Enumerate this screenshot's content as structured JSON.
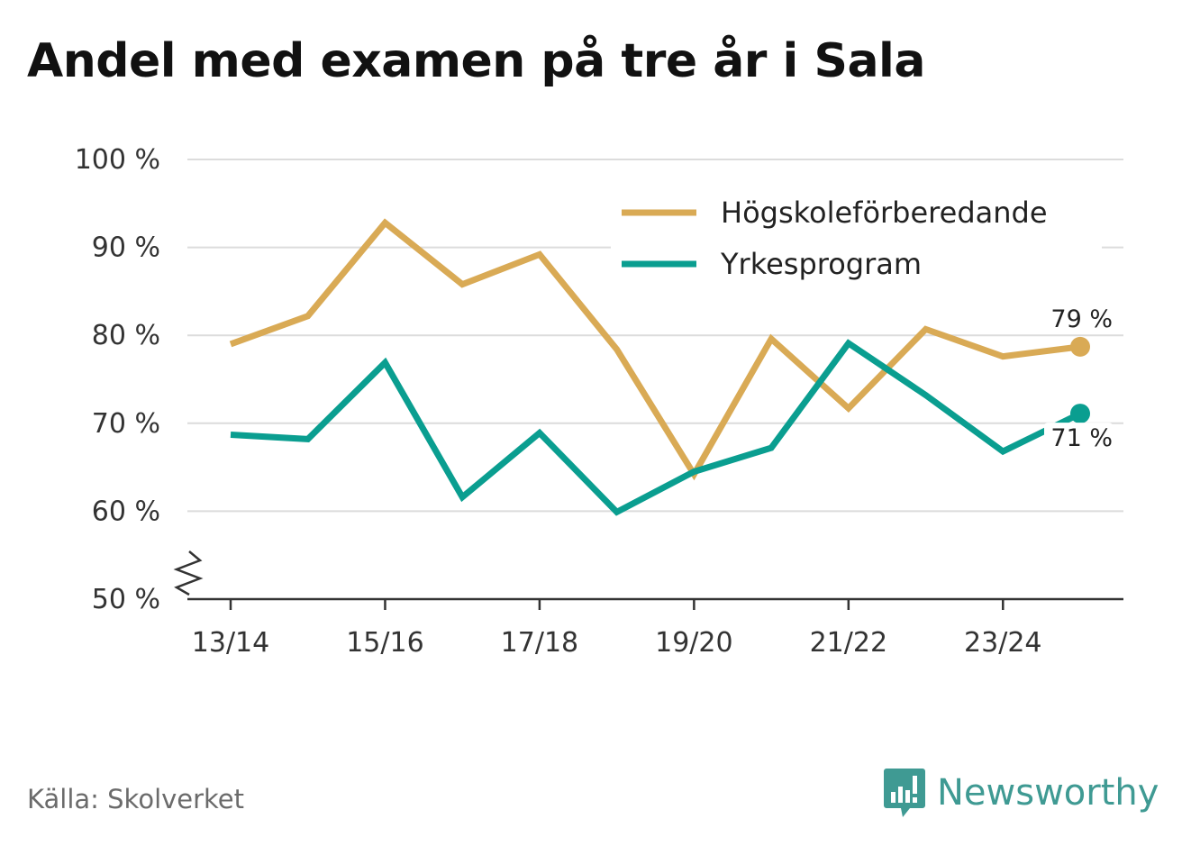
{
  "title": "Andel med examen på tre år i Sala",
  "source": "Källa: Skolverket",
  "brand": {
    "name": "Newsworthy",
    "icon": "newsworthy-logo-icon",
    "color": "#3f9a93"
  },
  "chart_data": {
    "type": "line",
    "title": "Andel med examen på tre år i Sala",
    "xlabel": "",
    "ylabel": "",
    "categories": [
      "13/14",
      "14/15",
      "15/16",
      "16/17",
      "17/18",
      "18/19",
      "19/20",
      "20/21",
      "21/22",
      "22/23",
      "23/24",
      "24/25"
    ],
    "x_tick_labels": [
      "13/14",
      "15/16",
      "17/18",
      "19/20",
      "21/22",
      "23/24"
    ],
    "x_tick_indices": [
      0,
      2,
      4,
      6,
      8,
      10
    ],
    "ylim": [
      50,
      100
    ],
    "y_ticks": [
      50,
      60,
      70,
      80,
      90,
      100
    ],
    "y_tick_labels": [
      "50 %",
      "60 %",
      "70 %",
      "80 %",
      "90 %",
      "100 %"
    ],
    "y_axis_break": true,
    "grid": true,
    "legend_position": "top-right",
    "series": [
      {
        "name": "Högskoleförberedande",
        "color": "#d9aa55",
        "values": [
          79.0,
          82.2,
          92.8,
          85.8,
          89.2,
          78.4,
          64.2,
          79.6,
          71.7,
          80.7,
          77.6,
          78.7
        ],
        "end_label": "79 %"
      },
      {
        "name": "Yrkesprogram",
        "color": "#0a9e90",
        "values": [
          68.7,
          68.2,
          76.9,
          61.6,
          68.9,
          59.9,
          64.5,
          67.2,
          79.1,
          73.2,
          66.8,
          71.1
        ],
        "end_label": "71 %"
      }
    ]
  }
}
